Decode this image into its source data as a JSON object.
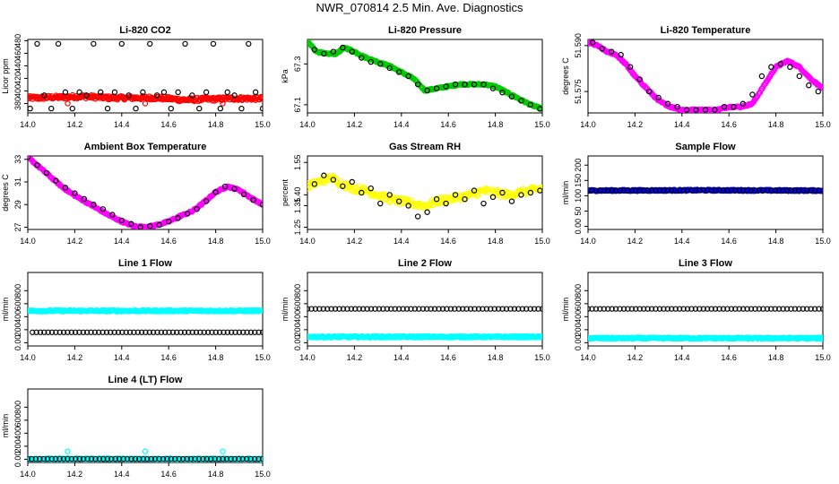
{
  "page": {
    "title": "NWR_070814  2.5 Min. Ave. Diagnostics"
  },
  "chart_data": [
    {
      "type": "scatter",
      "title": "Li-820 CO2",
      "ylabel": "Licor ppm",
      "xlim": [
        14.0,
        15.0
      ],
      "ylim": [
        365,
        482
      ],
      "xticks": [
        14.0,
        14.2,
        14.4,
        14.6,
        14.8,
        15.0
      ],
      "yticks": [
        380,
        400,
        420,
        440,
        460,
        480
      ],
      "series": [
        {
          "color": "#ff0000",
          "style": "dense-band",
          "x": [
            14.0,
            14.05,
            14.1,
            14.15,
            14.2,
            14.25,
            14.3,
            14.35,
            14.4,
            14.45,
            14.5,
            14.55,
            14.6,
            14.65,
            14.7,
            14.75,
            14.8,
            14.85,
            14.9,
            14.95,
            15.0
          ],
          "y": [
            389,
            389,
            390,
            390,
            391,
            391,
            390,
            389,
            389,
            389,
            389,
            389,
            388,
            386,
            386,
            387,
            387,
            388,
            388,
            388,
            388
          ]
        },
        {
          "color": "#ff0000",
          "style": "open",
          "x": [
            14.17,
            14.5,
            14.83
          ],
          "y": [
            380,
            380,
            380
          ]
        },
        {
          "color": "#000000",
          "style": "open",
          "x": [
            14.01,
            14.04,
            14.07,
            14.1,
            14.13,
            14.16,
            14.19,
            14.22,
            14.25,
            14.28,
            14.31,
            14.34,
            14.37,
            14.4,
            14.43,
            14.46,
            14.49,
            14.52,
            14.55,
            14.58,
            14.61,
            14.64,
            14.67,
            14.7,
            14.73,
            14.76,
            14.79,
            14.82,
            14.85,
            14.88,
            14.91,
            14.94,
            14.97,
            15.0
          ],
          "y": [
            372,
            475,
            393,
            372,
            475,
            398,
            372,
            398,
            393,
            475,
            398,
            372,
            398,
            475,
            393,
            372,
            398,
            475,
            393,
            398,
            372,
            398,
            475,
            393,
            372,
            398,
            475,
            372,
            398,
            393,
            372,
            475,
            398,
            372
          ]
        }
      ]
    },
    {
      "type": "scatter",
      "title": "Li-820 Pressure",
      "ylabel": "kPa",
      "xlim": [
        14.0,
        15.0
      ],
      "ylim": [
        67.06,
        67.42
      ],
      "xticks": [
        14.0,
        14.2,
        14.4,
        14.6,
        14.8,
        15.0
      ],
      "yticks": [
        67.1,
        67.3
      ],
      "series": [
        {
          "color": "#00cc00",
          "style": "dense-line",
          "x": [
            14.0,
            14.04,
            14.08,
            14.12,
            14.16,
            14.2,
            14.25,
            14.3,
            14.35,
            14.4,
            14.45,
            14.5,
            14.55,
            14.6,
            14.65,
            14.7,
            14.75,
            14.8,
            14.85,
            14.9,
            14.95,
            15.0
          ],
          "y": [
            67.41,
            67.36,
            67.35,
            67.35,
            67.38,
            67.36,
            67.33,
            67.31,
            67.29,
            67.26,
            67.23,
            67.17,
            67.18,
            67.19,
            67.2,
            67.2,
            67.2,
            67.19,
            67.16,
            67.13,
            67.1,
            67.08
          ]
        },
        {
          "color": "#000000",
          "style": "open",
          "x": [
            14.03,
            14.07,
            14.11,
            14.15,
            14.19,
            14.23,
            14.27,
            14.31,
            14.35,
            14.39,
            14.43,
            14.47,
            14.51,
            14.55,
            14.59,
            14.63,
            14.67,
            14.71,
            14.75,
            14.79,
            14.83,
            14.87,
            14.91,
            14.95,
            14.99
          ],
          "y": [
            67.37,
            67.35,
            67.36,
            67.38,
            67.36,
            67.33,
            67.31,
            67.3,
            67.28,
            67.26,
            67.24,
            67.2,
            67.17,
            67.18,
            67.19,
            67.2,
            67.2,
            67.2,
            67.2,
            67.18,
            67.16,
            67.14,
            67.12,
            67.1,
            67.08
          ]
        }
      ]
    },
    {
      "type": "scatter",
      "title": "Li-820 Temperature",
      "ylabel": "degrees C",
      "xlim": [
        14.0,
        15.0
      ],
      "ylim": [
        51.568,
        51.592
      ],
      "xticks": [
        14.0,
        14.2,
        14.4,
        14.6,
        14.8,
        15.0
      ],
      "yticks": [
        51.575,
        51.59
      ],
      "ytick_labels": [
        "51.575",
        "51.590"
      ],
      "series": [
        {
          "color": "#ff00ff",
          "style": "dense-line",
          "x": [
            14.0,
            14.04,
            14.08,
            14.12,
            14.16,
            14.2,
            14.25,
            14.3,
            14.35,
            14.4,
            14.45,
            14.5,
            14.55,
            14.6,
            14.65,
            14.7,
            14.75,
            14.8,
            14.85,
            14.9,
            14.95,
            15.0
          ],
          "y": [
            51.591,
            51.59,
            51.588,
            51.587,
            51.584,
            51.58,
            51.576,
            51.572,
            51.57,
            51.569,
            51.569,
            51.569,
            51.569,
            51.57,
            51.57,
            51.571,
            51.577,
            51.583,
            51.585,
            51.583,
            51.579,
            51.576
          ]
        },
        {
          "color": "#000000",
          "style": "open",
          "x": [
            14.02,
            14.06,
            14.1,
            14.14,
            14.18,
            14.22,
            14.26,
            14.3,
            14.34,
            14.38,
            14.42,
            14.46,
            14.5,
            14.54,
            14.58,
            14.62,
            14.66,
            14.7,
            14.74,
            14.78,
            14.82,
            14.86,
            14.9,
            14.94,
            14.98
          ],
          "y": [
            51.591,
            51.589,
            51.588,
            51.587,
            51.583,
            51.579,
            51.575,
            51.573,
            51.571,
            51.57,
            51.569,
            51.569,
            51.569,
            51.569,
            51.57,
            51.57,
            51.571,
            51.574,
            51.58,
            51.583,
            51.584,
            51.583,
            51.58,
            51.577,
            51.575
          ]
        }
      ]
    },
    {
      "type": "scatter",
      "title": "Ambient Box Temperature",
      "ylabel": "degrees C",
      "xlim": [
        14.0,
        15.0
      ],
      "ylim": [
        26.8,
        33.3
      ],
      "xticks": [
        14.0,
        14.2,
        14.4,
        14.6,
        14.8,
        15.0
      ],
      "yticks": [
        27,
        29,
        31,
        33
      ],
      "series": [
        {
          "color": "#ff00ff",
          "style": "dense-line",
          "x": [
            14.0,
            14.05,
            14.1,
            14.15,
            14.2,
            14.25,
            14.3,
            14.35,
            14.4,
            14.45,
            14.5,
            14.55,
            14.6,
            14.65,
            14.7,
            14.75,
            14.8,
            14.85,
            14.9,
            14.95,
            15.0
          ],
          "y": [
            33.2,
            32.3,
            31.4,
            30.5,
            29.8,
            29.2,
            28.6,
            28.0,
            27.5,
            27.1,
            27.0,
            27.2,
            27.5,
            28.0,
            28.4,
            29.2,
            30.1,
            30.6,
            30.3,
            29.6,
            29.0
          ]
        },
        {
          "color": "#000000",
          "style": "open",
          "x": [
            14.0,
            14.04,
            14.08,
            14.12,
            14.16,
            14.2,
            14.24,
            14.28,
            14.32,
            14.36,
            14.4,
            14.44,
            14.48,
            14.52,
            14.56,
            14.6,
            14.64,
            14.68,
            14.72,
            14.76,
            14.8,
            14.84,
            14.88,
            14.92,
            14.96,
            15.0
          ],
          "y": [
            33.2,
            32.5,
            31.8,
            31.1,
            30.5,
            30.0,
            29.5,
            29.0,
            28.6,
            28.1,
            27.6,
            27.3,
            27.0,
            27.1,
            27.2,
            27.5,
            27.8,
            28.2,
            28.6,
            29.3,
            30.1,
            30.6,
            30.4,
            29.9,
            29.4,
            29.0
          ]
        }
      ]
    },
    {
      "type": "scatter",
      "title": "Gas Stream RH",
      "ylabel": "percent",
      "xlim": [
        14.0,
        15.0
      ],
      "ylim": [
        1.24,
        1.58
      ],
      "xticks": [
        14.0,
        14.2,
        14.4,
        14.6,
        14.8,
        15.0
      ],
      "yticks": [
        1.25,
        1.35,
        1.4,
        1.55
      ],
      "series": [
        {
          "color": "#ffff00",
          "style": "noisy",
          "x": [
            14.0,
            14.05,
            14.1,
            14.15,
            14.2,
            14.25,
            14.3,
            14.35,
            14.4,
            14.45,
            14.5,
            14.55,
            14.6,
            14.65,
            14.7,
            14.75,
            14.8,
            14.85,
            14.9,
            14.95,
            15.0
          ],
          "y": [
            1.44,
            1.46,
            1.48,
            1.45,
            1.43,
            1.42,
            1.4,
            1.38,
            1.37,
            1.36,
            1.35,
            1.37,
            1.38,
            1.39,
            1.4,
            1.42,
            1.41,
            1.4,
            1.41,
            1.42,
            1.43
          ]
        },
        {
          "color": "#000000",
          "style": "open",
          "x": [
            14.03,
            14.07,
            14.11,
            14.15,
            14.19,
            14.23,
            14.27,
            14.31,
            14.35,
            14.39,
            14.43,
            14.47,
            14.51,
            14.55,
            14.59,
            14.63,
            14.67,
            14.71,
            14.75,
            14.79,
            14.83,
            14.87,
            14.91,
            14.95,
            14.99
          ],
          "y": [
            1.45,
            1.49,
            1.47,
            1.44,
            1.46,
            1.41,
            1.43,
            1.36,
            1.4,
            1.37,
            1.35,
            1.3,
            1.32,
            1.38,
            1.36,
            1.4,
            1.38,
            1.42,
            1.36,
            1.39,
            1.41,
            1.37,
            1.4,
            1.41,
            1.42
          ]
        }
      ]
    },
    {
      "type": "scatter",
      "title": "Sample Flow",
      "ylabel": "ml/min",
      "xlim": [
        14.0,
        15.0
      ],
      "ylim": [
        -10,
        230
      ],
      "xticks": [
        14.0,
        14.2,
        14.4,
        14.6,
        14.8,
        15.0
      ],
      "yticks": [
        0,
        50,
        100,
        150,
        200
      ],
      "series": [
        {
          "color": "#0000ff",
          "style": "dense-line",
          "x": [
            14.0,
            14.5,
            15.0
          ],
          "y": [
            117,
            118,
            117
          ]
        },
        {
          "color": "#000000",
          "style": "open-dense",
          "x": [
            14.0,
            14.5,
            15.0
          ],
          "y": [
            117,
            118,
            117
          ]
        }
      ]
    },
    {
      "type": "scatter",
      "title": "Line 1 Flow",
      "ylabel": "ml/min",
      "xlim": [
        14.0,
        15.0
      ],
      "ylim": [
        -50,
        1080
      ],
      "xticks": [
        14.0,
        14.2,
        14.4,
        14.6,
        14.8,
        15.0
      ],
      "yticks": [
        0,
        200,
        400,
        600,
        800
      ],
      "series": [
        {
          "color": "#00ffff",
          "style": "dense-line",
          "x": [
            14.0,
            14.5,
            15.0
          ],
          "y": [
            490,
            490,
            490
          ]
        },
        {
          "color": "#000000",
          "style": "open-dense",
          "x": [
            14.02,
            15.0
          ],
          "y": [
            160,
            160
          ]
        }
      ]
    },
    {
      "type": "scatter",
      "title": "Line 2 Flow",
      "ylabel": "ml/min",
      "xlim": [
        14.0,
        15.0
      ],
      "ylim": [
        -50,
        1080
      ],
      "xticks": [
        14.0,
        14.2,
        14.4,
        14.6,
        14.8,
        15.0
      ],
      "yticks": [
        0,
        200,
        400,
        600,
        800
      ],
      "series": [
        {
          "color": "#00ffff",
          "style": "dense-line",
          "x": [
            14.0,
            14.5,
            15.0
          ],
          "y": [
            90,
            90,
            90
          ]
        },
        {
          "color": "#000000",
          "style": "open-dense",
          "x": [
            14.0,
            15.0
          ],
          "y": [
            520,
            520
          ]
        }
      ]
    },
    {
      "type": "scatter",
      "title": "Line 3 Flow",
      "ylabel": "ml/min",
      "xlim": [
        14.0,
        15.0
      ],
      "ylim": [
        -50,
        1080
      ],
      "xticks": [
        14.0,
        14.2,
        14.4,
        14.6,
        14.8,
        15.0
      ],
      "yticks": [
        0,
        200,
        400,
        600,
        800
      ],
      "series": [
        {
          "color": "#00ffff",
          "style": "dense-line",
          "x": [
            14.0,
            14.5,
            15.0
          ],
          "y": [
            70,
            70,
            70
          ]
        },
        {
          "color": "#000000",
          "style": "open-dense",
          "x": [
            14.0,
            15.0
          ],
          "y": [
            520,
            520
          ]
        }
      ]
    },
    {
      "type": "scatter",
      "title": "Line 4 (LT) Flow",
      "ylabel": "ml/min",
      "xlim": [
        14.0,
        15.0
      ],
      "ylim": [
        -50,
        1080
      ],
      "xticks": [
        14.0,
        14.2,
        14.4,
        14.6,
        14.8,
        15.0
      ],
      "yticks": [
        0,
        200,
        400,
        600,
        800
      ],
      "series": [
        {
          "color": "#00ffff",
          "style": "dense-line",
          "x": [
            14.0,
            14.5,
            15.0
          ],
          "y": [
            5,
            5,
            5
          ]
        },
        {
          "color": "#000000",
          "style": "open-dense",
          "x": [
            14.0,
            15.0
          ],
          "y": [
            5,
            5
          ]
        },
        {
          "color": "#00ffff",
          "style": "open",
          "x": [
            14.17,
            14.5,
            14.83
          ],
          "y": [
            120,
            120,
            120
          ]
        }
      ]
    }
  ]
}
